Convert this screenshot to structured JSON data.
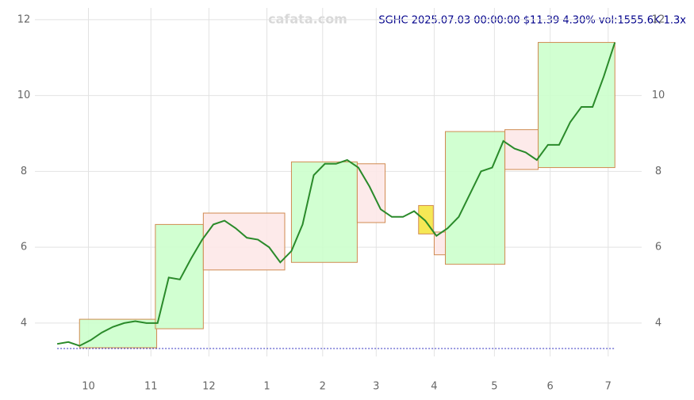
{
  "chart_data": {
    "type": "line",
    "title": "SGHC 2025.07.03 00:00:00 $11.39 4.30% vol:1555.6K 1.3x",
    "watermark": "cafata.com",
    "x": [
      0,
      5,
      10,
      15,
      20,
      25,
      30,
      35,
      40,
      45,
      50,
      55,
      60,
      65,
      70,
      75,
      80,
      85,
      90,
      95,
      100,
      105,
      110,
      115,
      120,
      125,
      130,
      135,
      140,
      145,
      150,
      155,
      160,
      165,
      170,
      175,
      180,
      185,
      190,
      195,
      200,
      205,
      210,
      215,
      220,
      225,
      230,
      235,
      240,
      245,
      250
    ],
    "series": [
      {
        "name": "SGHC",
        "color": "#2a8a2a",
        "values": [
          3.45,
          3.5,
          3.4,
          3.55,
          3.75,
          3.9,
          4.0,
          4.05,
          4.0,
          4.0,
          5.2,
          5.15,
          5.7,
          6.2,
          6.6,
          6.7,
          6.5,
          6.25,
          6.2,
          6.0,
          5.6,
          5.9,
          6.6,
          7.9,
          8.2,
          8.2,
          8.3,
          8.1,
          7.6,
          7.0,
          6.8,
          6.8,
          6.95,
          6.7,
          6.3,
          6.5,
          6.8,
          7.4,
          8.0,
          8.1,
          8.8,
          8.6,
          8.5,
          8.3,
          8.7,
          8.7,
          9.3,
          9.7,
          9.7,
          10.5,
          11.4
        ]
      }
    ],
    "zones": [
      {
        "x0": 10,
        "x1": 44.6,
        "y0": 3.35,
        "y1": 4.1,
        "color": "#ccffcc"
      },
      {
        "x0": 44,
        "x1": 65.5,
        "y0": 3.85,
        "y1": 6.6,
        "color": "#ccffcc"
      },
      {
        "x0": 65.5,
        "x1": 102,
        "y0": 5.4,
        "y1": 6.9,
        "color": "#fde8e8"
      },
      {
        "x0": 105,
        "x1": 134.5,
        "y0": 5.6,
        "y1": 8.25,
        "color": "#ccffcc"
      },
      {
        "x0": 134.5,
        "x1": 147,
        "y0": 6.65,
        "y1": 8.2,
        "color": "#fde8e8"
      },
      {
        "x0": 162,
        "x1": 168.6,
        "y0": 6.35,
        "y1": 7.1,
        "color": "#f5e642"
      },
      {
        "x0": 169,
        "x1": 174,
        "y0": 5.8,
        "y1": 6.4,
        "color": "#fde8e8"
      },
      {
        "x0": 174,
        "x1": 200.7,
        "y0": 5.55,
        "y1": 9.05,
        "color": "#ccffcc"
      },
      {
        "x0": 200.7,
        "x1": 215.6,
        "y0": 8.05,
        "y1": 9.1,
        "color": "#fde8e8"
      },
      {
        "x0": 215.6,
        "x1": 250,
        "y0": 8.1,
        "y1": 11.4,
        "color": "#ccffcc"
      }
    ],
    "xlim": [
      -10,
      262
    ],
    "xticks": [
      {
        "value": 14,
        "label": "10"
      },
      {
        "value": 42,
        "label": "11"
      },
      {
        "value": 68,
        "label": "12"
      },
      {
        "value": 94,
        "label": "1"
      },
      {
        "value": 119,
        "label": "2"
      },
      {
        "value": 143,
        "label": "3"
      },
      {
        "value": 169,
        "label": "4"
      },
      {
        "value": 196,
        "label": "5"
      },
      {
        "value": 221,
        "label": "6"
      },
      {
        "value": 247,
        "label": "7"
      }
    ],
    "ylim": [
      3.12,
      12.31
    ],
    "yticks": [
      4,
      6,
      8,
      10,
      12
    ],
    "grid": true
  }
}
